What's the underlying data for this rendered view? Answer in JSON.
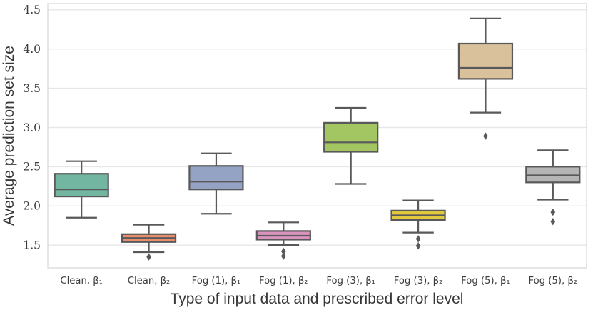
{
  "chart_data": {
    "type": "box",
    "title": "",
    "xlabel": "Type of input data and prescribed error level",
    "ylabel": "Average prediction set size",
    "ylim": [
      1.21,
      4.58
    ],
    "yticks": [
      1.5,
      2.0,
      2.5,
      3.0,
      3.5,
      4.0,
      4.5
    ],
    "grid": "horizontal-only",
    "legend": "none",
    "line_color": "#595959",
    "grid_color": "#e7e7e7",
    "border_color": "#dcdcdc",
    "boxes": [
      {
        "label": "Clean, β₁",
        "color": "#72b6a1",
        "whislo": 1.85,
        "q1": 2.12,
        "med": 2.21,
        "q3": 2.41,
        "whishi": 2.57,
        "outliers": []
      },
      {
        "label": "Clean, β₂",
        "color": "#e68d6e",
        "whislo": 1.41,
        "q1": 1.54,
        "med": 1.59,
        "q3": 1.64,
        "whishi": 1.76,
        "outliers": [
          1.35
        ]
      },
      {
        "label": "Fog (1), β₁",
        "color": "#94a3c4",
        "whislo": 1.9,
        "q1": 2.21,
        "med": 2.31,
        "q3": 2.51,
        "whishi": 2.67,
        "outliers": []
      },
      {
        "label": "Fog (1), β₂",
        "color": "#da93be",
        "whislo": 1.5,
        "q1": 1.57,
        "med": 1.62,
        "q3": 1.68,
        "whishi": 1.79,
        "outliers": [
          1.42,
          1.36
        ]
      },
      {
        "label": "Fog (3), β₁",
        "color": "#a3c663",
        "whislo": 2.28,
        "q1": 2.69,
        "med": 2.81,
        "q3": 3.06,
        "whishi": 3.25,
        "outliers": []
      },
      {
        "label": "Fog (3), β₂",
        "color": "#e2c83f",
        "whislo": 1.66,
        "q1": 1.82,
        "med": 1.88,
        "q3": 1.94,
        "whishi": 2.07,
        "outliers": [
          1.58,
          1.49
        ]
      },
      {
        "label": "Fog (5), β₁",
        "color": "#d8c19b",
        "whislo": 3.19,
        "q1": 3.62,
        "med": 3.76,
        "q3": 4.07,
        "whishi": 4.39,
        "outliers": [
          2.89
        ]
      },
      {
        "label": "Fog (5), β₂",
        "color": "#b5b5b5",
        "whislo": 2.08,
        "q1": 2.3,
        "med": 2.39,
        "q3": 2.5,
        "whishi": 2.71,
        "outliers": [
          1.92,
          1.8
        ]
      }
    ]
  }
}
